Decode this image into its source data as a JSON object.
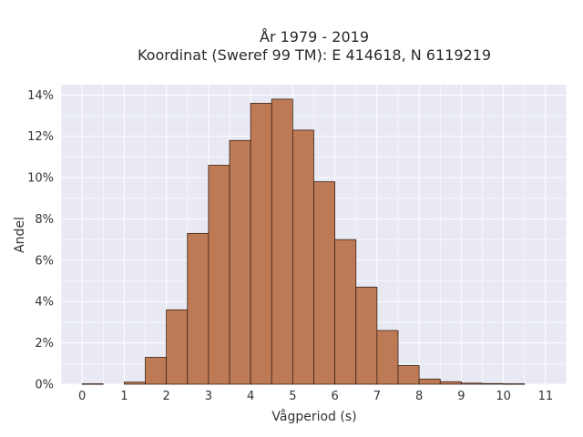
{
  "chart_data": {
    "type": "bar",
    "title": "År 1979 - 2019",
    "subtitle": "Koordinat (Sweref 99 TM): E 414618, N 6119219",
    "xlabel": "Vågperiod (s)",
    "ylabel": "Andel",
    "bin_width": 0.5,
    "bin_starts": [
      0,
      0.5,
      1,
      1.5,
      2,
      2.5,
      3,
      3.5,
      4,
      4.5,
      5,
      5.5,
      6,
      6.5,
      7,
      7.5,
      8,
      8.5,
      9,
      9.5,
      10,
      10.5
    ],
    "values": [
      0.02,
      0,
      0.1,
      1.3,
      3.6,
      7.3,
      10.6,
      11.8,
      13.6,
      13.8,
      12.3,
      9.8,
      7.0,
      4.7,
      2.6,
      0.9,
      0.25,
      0.12,
      0.05,
      0.03,
      0.02,
      0
    ],
    "xlim": [
      -0.5,
      11.5
    ],
    "ylim": [
      0,
      14.5
    ],
    "xticks": [
      0,
      1,
      2,
      3,
      4,
      5,
      6,
      7,
      8,
      9,
      10,
      11
    ],
    "yticks": [
      0,
      2,
      4,
      6,
      8,
      10,
      12,
      14
    ],
    "ytick_suffix": "%",
    "grid": true,
    "legend": "none",
    "colors": {
      "bar_fill": "#bd7a55",
      "bar_stroke": "#3b2418",
      "plot_bg": "#e8e9f3",
      "grid": "#ffffff"
    }
  }
}
